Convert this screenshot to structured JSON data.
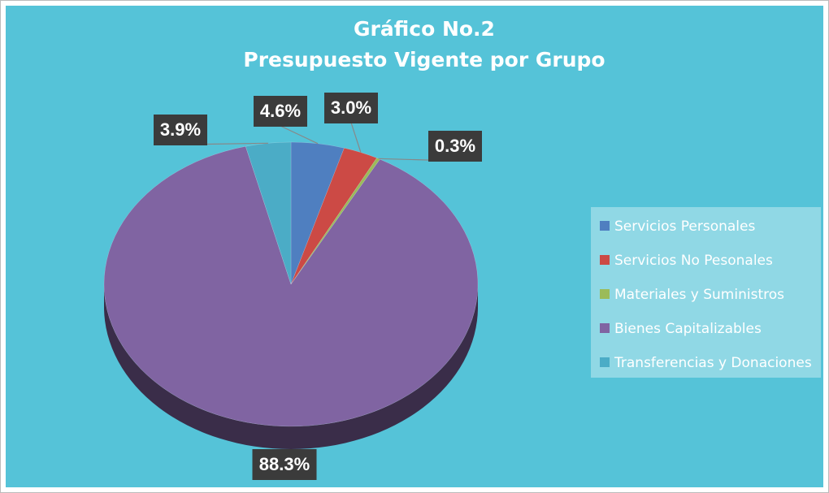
{
  "chart_data": {
    "type": "pie",
    "title": "Gráfico No.2",
    "subtitle": "Presupuesto Vigente por Grupo",
    "categories": [
      "Servicios Personales",
      "Servicios No Pesonales",
      "Materiales y Suministros",
      "Bienes Capitalizables",
      "Transferencias y Donaciones"
    ],
    "values": [
      4.6,
      3.0,
      0.3,
      88.3,
      3.9
    ],
    "value_labels": [
      "4.6%",
      "3.0%",
      "0.3%",
      "88.3%",
      "3.9%"
    ],
    "colors": [
      "#4f7fc0",
      "#cc4a45",
      "#9bbb59",
      "#8064a2",
      "#4bacc6"
    ],
    "legend": "right"
  }
}
